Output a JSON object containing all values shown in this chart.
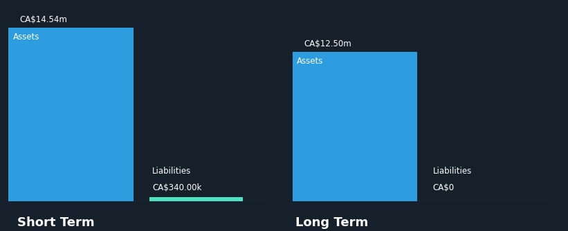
{
  "background_color": "#15202b",
  "text_color": "#ffffff",
  "groups": [
    {
      "label": "Short Term",
      "bars": [
        {
          "name": "Assets",
          "value": 14540000,
          "color": "#2d9de0",
          "label_value": "CA$14.54m",
          "bar_label": "Assets"
        },
        {
          "name": "Liabilities",
          "value": 340000,
          "color": "#50e3c2",
          "label_value": "CA$340.00k",
          "bar_label": "Liabilities"
        }
      ]
    },
    {
      "label": "Long Term",
      "bars": [
        {
          "name": "Assets",
          "value": 12500000,
          "color": "#2d9de0",
          "label_value": "CA$12.50m",
          "bar_label": "Assets"
        },
        {
          "name": "Liabilities",
          "value": 0,
          "color": "#2d9de0",
          "label_value": "CA$0",
          "bar_label": "Liabilities"
        }
      ]
    }
  ],
  "max_value": 15500000,
  "group_label_fontsize": 13,
  "bar_inner_label_fontsize": 8.5,
  "value_label_fontsize": 8.5,
  "liab_label_fontsize": 8.5
}
